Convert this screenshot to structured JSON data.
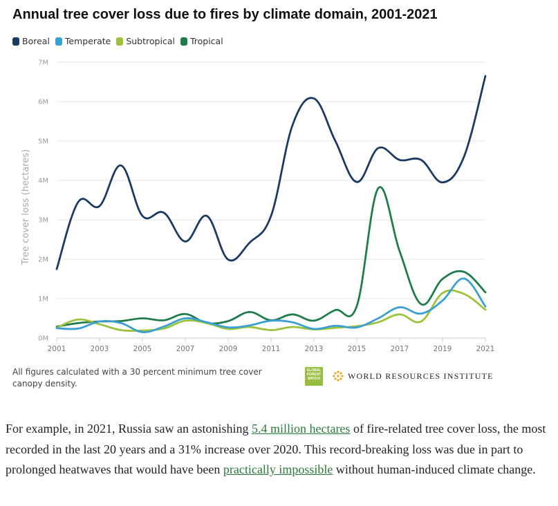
{
  "chart_data": {
    "type": "line",
    "title": "Annual tree cover loss due to fires by climate domain, 2001-2021",
    "ylabel": "Tree cover loss (hectares)",
    "xlabel": "",
    "x": [
      2001,
      2002,
      2003,
      2004,
      2005,
      2006,
      2007,
      2008,
      2009,
      2010,
      2011,
      2012,
      2013,
      2014,
      2015,
      2016,
      2017,
      2018,
      2019,
      2020,
      2021
    ],
    "ylim": [
      0,
      7000000
    ],
    "yticks": [
      {
        "value": 0,
        "label": "0M"
      },
      {
        "value": 1000000,
        "label": "1M"
      },
      {
        "value": 2000000,
        "label": "2M"
      },
      {
        "value": 3000000,
        "label": "3M"
      },
      {
        "value": 4000000,
        "label": "4M"
      },
      {
        "value": 5000000,
        "label": "5M"
      },
      {
        "value": 6000000,
        "label": "6M"
      },
      {
        "value": 7000000,
        "label": "7M"
      }
    ],
    "xticks": [
      "2001",
      "2003",
      "2005",
      "2007",
      "2009",
      "2011",
      "2013",
      "2015",
      "2017",
      "2019",
      "2021"
    ],
    "grid": true,
    "legend_position": "top-left",
    "series": [
      {
        "name": "Boreal",
        "color": "#1a3a64",
        "values": [
          1750000,
          3450000,
          3350000,
          4380000,
          3100000,
          3180000,
          2450000,
          3100000,
          1990000,
          2420000,
          3100000,
          5400000,
          6080000,
          5000000,
          3960000,
          4820000,
          4520000,
          4520000,
          3950000,
          4600000,
          6650000
        ]
      },
      {
        "name": "Temperate",
        "color": "#3a9fd2",
        "values": [
          250000,
          240000,
          420000,
          380000,
          150000,
          290000,
          500000,
          400000,
          270000,
          320000,
          440000,
          400000,
          230000,
          310000,
          270000,
          500000,
          780000,
          620000,
          950000,
          1510000,
          800000
        ]
      },
      {
        "name": "Subtropical",
        "color": "#9cc23b",
        "values": [
          260000,
          470000,
          350000,
          200000,
          190000,
          240000,
          440000,
          380000,
          230000,
          280000,
          200000,
          280000,
          220000,
          260000,
          300000,
          400000,
          600000,
          420000,
          1140000,
          1120000,
          720000
        ]
      },
      {
        "name": "Tropical",
        "color": "#1e7d4a",
        "values": [
          290000,
          380000,
          420000,
          430000,
          500000,
          450000,
          610000,
          380000,
          430000,
          660000,
          450000,
          600000,
          440000,
          710000,
          810000,
          3800000,
          2200000,
          860000,
          1500000,
          1680000,
          1160000
        ]
      }
    ]
  },
  "footnote": "All figures calculated with a 30 percent minimum tree cover canopy density.",
  "logos": {
    "gfw_lines": [
      "GLOBAL",
      "FOREST",
      "WATCH"
    ],
    "wri_text": "WORLD RESOURCES INSTITUTE"
  },
  "article": {
    "part1": "For example, in 2021, Russia saw an astonishing ",
    "link1": "5.4 million hectares",
    "part2": " of fire-related tree cover loss, the most recorded in the last 20 years and a 31% increase over 2020. This record-breaking loss was due in part to prolonged heatwaves that would have been ",
    "link2": "practically impossible",
    "part3": " without human-induced climate change."
  }
}
